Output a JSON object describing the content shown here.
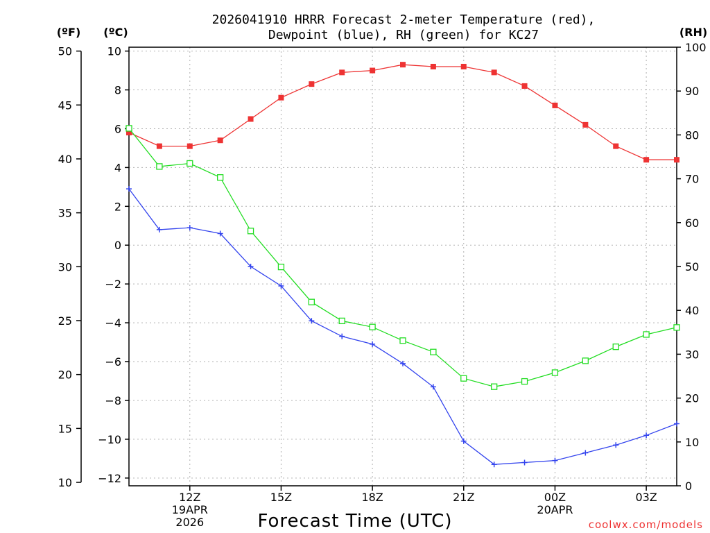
{
  "chart_data": {
    "type": "line",
    "title_lines": [
      "2026041910 HRRR Forecast 2-meter Temperature (red),",
      "Dewpoint (blue), RH (green) for KC27"
    ],
    "xlabel": "Forecast Time (UTC)",
    "unit_labels": {
      "fahrenheit": "(ºF)",
      "celsius": "(ºC)",
      "rh": "(RH)"
    },
    "x_hours": [
      10,
      11,
      12,
      13,
      14,
      15,
      16,
      17,
      18,
      19,
      20,
      21,
      22,
      23,
      24,
      25,
      26,
      27,
      28
    ],
    "xlim": [
      10,
      28
    ],
    "x_ticks": [
      {
        "hour": 12,
        "lines": [
          "12Z",
          "19APR",
          "2026"
        ]
      },
      {
        "hour": 15,
        "lines": [
          "15Z"
        ]
      },
      {
        "hour": 18,
        "lines": [
          "18Z"
        ]
      },
      {
        "hour": 21,
        "lines": [
          "21Z"
        ]
      },
      {
        "hour": 24,
        "lines": [
          "00Z",
          "20APR"
        ]
      },
      {
        "hour": 27,
        "lines": [
          "03Z"
        ]
      }
    ],
    "celsius_ticks": [
      "10",
      "8",
      "6",
      "4",
      "2",
      "0",
      "−2",
      "−4",
      "−6",
      "−8",
      "−10",
      "−12"
    ],
    "celsius_values": [
      10,
      8,
      6,
      4,
      2,
      0,
      -2,
      -4,
      -6,
      -8,
      -10,
      -12
    ],
    "fahrenheit_ticks": [
      "50",
      "45",
      "40",
      "35",
      "30",
      "25",
      "20",
      "15",
      "10"
    ],
    "fahrenheit_values": [
      50,
      45,
      40,
      35,
      30,
      25,
      20,
      15,
      10
    ],
    "rh_ticks": [
      "100",
      "90",
      "80",
      "70",
      "60",
      "50",
      "40",
      "30",
      "20",
      "10",
      "0"
    ],
    "rh_values": [
      100,
      90,
      80,
      70,
      60,
      50,
      40,
      30,
      20,
      10,
      0
    ],
    "ylim_celsius": [
      -12.4,
      10.2
    ],
    "ylim_rh": [
      0,
      100
    ],
    "series": [
      {
        "name": "Temperature",
        "axis": "celsius",
        "color": "#ee3333",
        "marker": "filled-square",
        "values": [
          5.8,
          5.1,
          5.1,
          5.4,
          6.5,
          7.6,
          8.3,
          8.9,
          9.0,
          9.3,
          9.2,
          9.2,
          8.9,
          8.2,
          7.2,
          6.2,
          5.1,
          4.4,
          4.4
        ]
      },
      {
        "name": "Dewpoint",
        "axis": "celsius",
        "color": "#3344ee",
        "marker": "plus",
        "values": [
          2.9,
          0.8,
          0.9,
          0.6,
          -1.1,
          -2.1,
          -3.9,
          -4.7,
          -5.1,
          -6.1,
          -7.3,
          -10.1,
          -11.3,
          -11.2,
          -11.1,
          -10.7,
          -10.3,
          -9.8,
          -9.2
        ]
      },
      {
        "name": "RH",
        "axis": "rh",
        "color": "#22dd22",
        "marker": "open-square",
        "values": [
          81.5,
          72.8,
          73.5,
          70.3,
          58.1,
          49.9,
          41.9,
          37.6,
          36.2,
          33.1,
          30.5,
          24.5,
          22.6,
          23.8,
          25.8,
          28.5,
          31.7,
          34.5,
          36.1
        ]
      }
    ]
  },
  "credit": {
    "text": "coolwx.com/models",
    "color": "#ee3333"
  }
}
